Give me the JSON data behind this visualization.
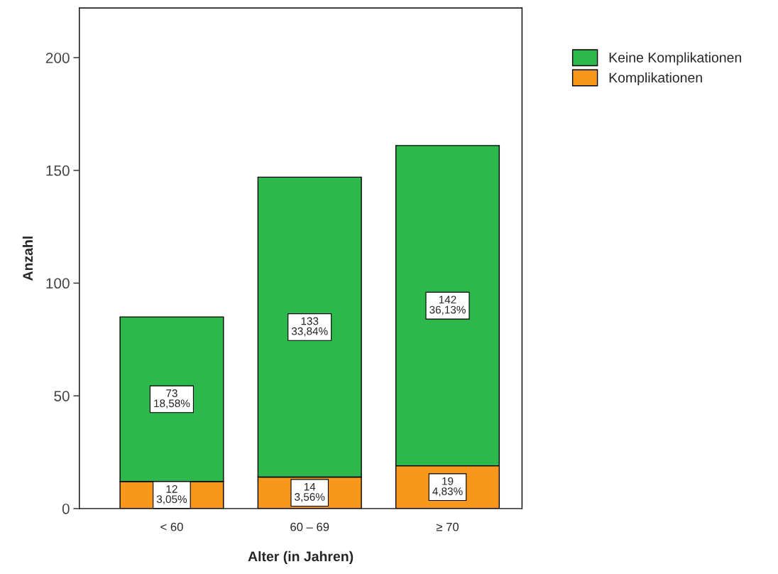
{
  "chart_data": {
    "type": "bar",
    "stacked": true,
    "xlabel": "Alter (in Jahren)",
    "ylabel": "Anzahl",
    "categories": [
      "< 60",
      "60 – 69",
      "≥ 70"
    ],
    "series": [
      {
        "name": "Komplikationen",
        "color": "#f7981d",
        "values": [
          12,
          14,
          19
        ],
        "value_labels": [
          "12\n3,05%",
          "14\n3,56%",
          "19\n4,83%"
        ]
      },
      {
        "name": "Keine Komplikationen",
        "color": "#2db84b",
        "values": [
          73,
          133,
          142
        ],
        "value_labels": [
          "73\n18,58%",
          "133\n33,84%",
          "142\n36,13%"
        ]
      }
    ],
    "ylim": [
      0,
      222
    ],
    "yticks": [
      0,
      50,
      100,
      150,
      200
    ],
    "grid": false,
    "legend": "top right"
  }
}
